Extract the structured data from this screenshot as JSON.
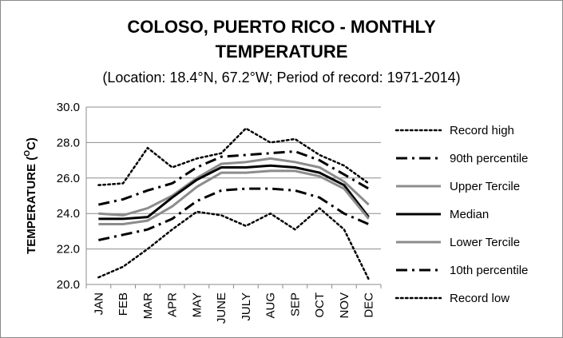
{
  "chart_data": {
    "type": "line",
    "title_line1": "COLOSO, PUERTO RICO - MONTHLY",
    "title_line2": "TEMPERATURE",
    "subtitle": "(Location: 18.4°N, 67.2°W; Period of record: 1971-2014)",
    "ylabel_main": "TEMPERATURE (",
    "ylabel_sup": "O",
    "ylabel_unit": "C)",
    "ylim": [
      20.0,
      30.0
    ],
    "yticks": [
      "20.0",
      "22.0",
      "24.0",
      "26.0",
      "28.0",
      "30.0"
    ],
    "ytick_values": [
      20,
      22,
      24,
      26,
      28,
      30
    ],
    "categories": [
      "JAN",
      "FEB",
      "MAR",
      "APR",
      "MAY",
      "JUNE",
      "JULY",
      "AUG",
      "SEP",
      "OCT",
      "NOV",
      "DEC"
    ],
    "grid": true,
    "legend_position": "right",
    "series": [
      {
        "name": "Record high",
        "style": "dotted",
        "color": "#000000",
        "values": [
          25.6,
          25.7,
          27.7,
          26.6,
          27.1,
          27.4,
          28.8,
          28.0,
          28.2,
          27.3,
          26.7,
          25.7
        ]
      },
      {
        "name": "90th percentile",
        "style": "dashdot",
        "color": "#000000",
        "values": [
          24.5,
          24.8,
          25.3,
          25.7,
          26.6,
          27.2,
          27.3,
          27.4,
          27.5,
          27.0,
          26.2,
          25.4
        ]
      },
      {
        "name": "Upper Tercile",
        "style": "solid",
        "color": "#8c8c8c",
        "values": [
          24.0,
          23.9,
          24.3,
          25.0,
          26.0,
          26.8,
          26.9,
          27.1,
          26.9,
          26.6,
          25.8,
          24.5
        ]
      },
      {
        "name": "Median",
        "style": "solid",
        "color": "#000000",
        "values": [
          23.7,
          23.7,
          23.8,
          24.9,
          25.9,
          26.6,
          26.6,
          26.7,
          26.6,
          26.3,
          25.6,
          23.8
        ]
      },
      {
        "name": "Lower Tercile",
        "style": "solid",
        "color": "#8c8c8c",
        "values": [
          23.4,
          23.4,
          23.6,
          24.4,
          25.5,
          26.3,
          26.3,
          26.4,
          26.4,
          26.1,
          25.4,
          23.7
        ]
      },
      {
        "name": "10th percentile",
        "style": "dashdot",
        "color": "#000000",
        "values": [
          22.5,
          22.8,
          23.1,
          23.7,
          24.7,
          25.3,
          25.4,
          25.4,
          25.3,
          24.9,
          24.0,
          23.4
        ]
      },
      {
        "name": "Record low",
        "style": "dotted",
        "color": "#000000",
        "values": [
          20.4,
          21.0,
          22.0,
          23.1,
          24.1,
          23.9,
          23.3,
          24.0,
          23.1,
          24.3,
          23.1,
          20.3
        ]
      }
    ]
  }
}
